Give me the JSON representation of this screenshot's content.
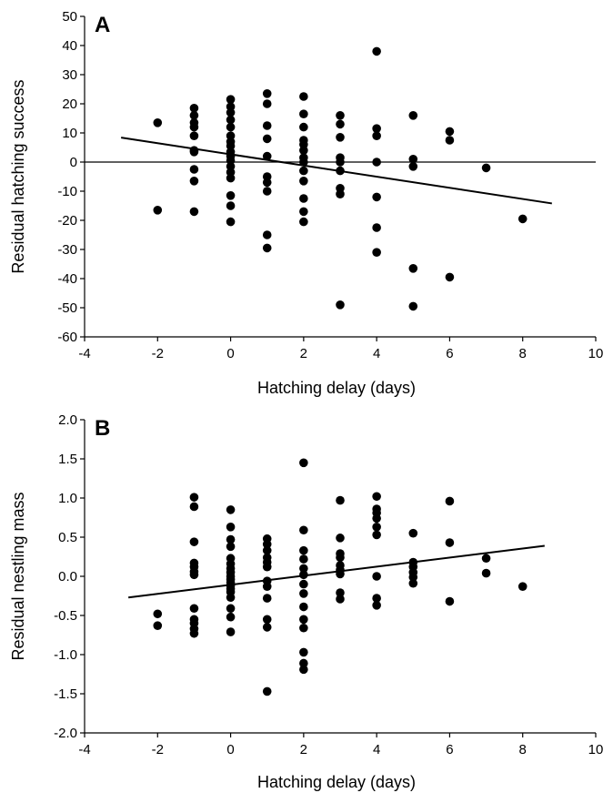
{
  "chart_data": [
    {
      "type": "scatter",
      "panel_label": "A",
      "xlabel": "Hatching delay (days)",
      "ylabel": "Residual hatching success",
      "xlim": [
        -4,
        10
      ],
      "ylim": [
        -60,
        50
      ],
      "xticks": [
        -4,
        -2,
        0,
        2,
        4,
        6,
        8,
        10
      ],
      "yticks": [
        -60,
        -50,
        -40,
        -30,
        -20,
        -10,
        0,
        10,
        20,
        30,
        40,
        50
      ],
      "xtick_labels": [
        "-4",
        "-2",
        "0",
        "2",
        "4",
        "6",
        "8",
        "10"
      ],
      "ytick_labels": [
        "-60",
        "-50",
        "-40",
        "-30",
        "-20",
        "-10",
        "0",
        "10",
        "20",
        "30",
        "40",
        "50"
      ],
      "grid": false,
      "legend": "none",
      "trendline": {
        "x": [
          -3,
          8.8
        ],
        "y": [
          8.4,
          -14.2
        ]
      },
      "points": [
        [
          -2,
          13.5
        ],
        [
          -2,
          -16.5
        ],
        [
          -1,
          18.5
        ],
        [
          -1,
          16
        ],
        [
          -1,
          13.5
        ],
        [
          -1,
          12
        ],
        [
          -1,
          9
        ],
        [
          -1,
          4
        ],
        [
          -1,
          3.5
        ],
        [
          -1,
          -2.5
        ],
        [
          -1,
          -6.5
        ],
        [
          -1,
          -17
        ],
        [
          0,
          21.5
        ],
        [
          0,
          19
        ],
        [
          0,
          17
        ],
        [
          0,
          14.5
        ],
        [
          0,
          12
        ],
        [
          0,
          9
        ],
        [
          0,
          7
        ],
        [
          0,
          5.5
        ],
        [
          0,
          3.5
        ],
        [
          0,
          2
        ],
        [
          0,
          0.5
        ],
        [
          0,
          -1.5
        ],
        [
          0,
          -3.5
        ],
        [
          0,
          -5.5
        ],
        [
          0,
          -11.5
        ],
        [
          0,
          -15
        ],
        [
          0,
          -20.5
        ],
        [
          1,
          23.5
        ],
        [
          1,
          20
        ],
        [
          1,
          12.5
        ],
        [
          1,
          8
        ],
        [
          1,
          2
        ],
        [
          1,
          -5
        ],
        [
          1,
          -7
        ],
        [
          1,
          -10
        ],
        [
          1,
          -25
        ],
        [
          1,
          -29.5
        ],
        [
          2,
          22.5
        ],
        [
          2,
          16.5
        ],
        [
          2,
          12
        ],
        [
          2,
          7.5
        ],
        [
          2,
          6
        ],
        [
          2,
          4
        ],
        [
          2,
          1.5
        ],
        [
          2,
          0
        ],
        [
          2,
          -3
        ],
        [
          2,
          -6.5
        ],
        [
          2,
          -12.5
        ],
        [
          2,
          -17
        ],
        [
          2,
          -20.5
        ],
        [
          3,
          16
        ],
        [
          3,
          13
        ],
        [
          3,
          8.5
        ],
        [
          3,
          1.5
        ],
        [
          3,
          0
        ],
        [
          3,
          -3
        ],
        [
          3,
          -9
        ],
        [
          3,
          -11
        ],
        [
          3,
          -49
        ],
        [
          4,
          38
        ],
        [
          4,
          11.5
        ],
        [
          4,
          9
        ],
        [
          4,
          0
        ],
        [
          4,
          -12
        ],
        [
          4,
          -22.5
        ],
        [
          4,
          -31
        ],
        [
          5,
          16
        ],
        [
          5,
          1
        ],
        [
          5,
          -1.5
        ],
        [
          5,
          -36.5
        ],
        [
          5,
          -49.5
        ],
        [
          6,
          10.5
        ],
        [
          6,
          7.5
        ],
        [
          6,
          -39.5
        ],
        [
          7,
          -2
        ],
        [
          8,
          -19.5
        ]
      ]
    },
    {
      "type": "scatter",
      "panel_label": "B",
      "xlabel": "Hatching delay (days)",
      "ylabel": "Residual nestling mass",
      "xlim": [
        -4,
        10
      ],
      "ylim": [
        -2.0,
        2.0
      ],
      "xticks": [
        -4,
        -2,
        0,
        2,
        4,
        6,
        8,
        10
      ],
      "yticks": [
        -2.0,
        -1.5,
        -1.0,
        -0.5,
        0.0,
        0.5,
        1.0,
        1.5,
        2.0
      ],
      "xtick_labels": [
        "-4",
        "-2",
        "0",
        "2",
        "4",
        "6",
        "8",
        "10"
      ],
      "ytick_labels": [
        "-2.0",
        "-1.5",
        "-1.0",
        "-0.5",
        "0.0",
        "0.5",
        "1.0",
        "1.5",
        "2.0"
      ],
      "grid": false,
      "legend": "none",
      "trendline": {
        "x": [
          -2.8,
          8.6
        ],
        "y": [
          -0.27,
          0.39
        ]
      },
      "points": [
        [
          -2,
          -0.48
        ],
        [
          -2,
          -0.63
        ],
        [
          -1,
          1.01
        ],
        [
          -1,
          0.89
        ],
        [
          -1,
          0.44
        ],
        [
          -1,
          0.17
        ],
        [
          -1,
          0.12
        ],
        [
          -1,
          0.06
        ],
        [
          -1,
          0.02
        ],
        [
          -1,
          -0.41
        ],
        [
          -1,
          -0.55
        ],
        [
          -1,
          -0.6
        ],
        [
          -1,
          -0.67
        ],
        [
          -1,
          -0.73
        ],
        [
          0,
          0.85
        ],
        [
          0,
          0.63
        ],
        [
          0,
          0.47
        ],
        [
          0,
          0.38
        ],
        [
          0,
          0.23
        ],
        [
          0,
          0.16
        ],
        [
          0,
          0.1
        ],
        [
          0,
          0.05
        ],
        [
          0,
          0.0
        ],
        [
          0,
          -0.04
        ],
        [
          0,
          -0.08
        ],
        [
          0,
          -0.12
        ],
        [
          0,
          -0.16
        ],
        [
          0,
          -0.2
        ],
        [
          0,
          -0.27
        ],
        [
          0,
          -0.41
        ],
        [
          0,
          -0.52
        ],
        [
          0,
          -0.71
        ],
        [
          1,
          0.48
        ],
        [
          1,
          0.41
        ],
        [
          1,
          0.33
        ],
        [
          1,
          0.24
        ],
        [
          1,
          0.18
        ],
        [
          1,
          0.12
        ],
        [
          1,
          -0.06
        ],
        [
          1,
          -0.13
        ],
        [
          1,
          -0.28
        ],
        [
          1,
          -0.55
        ],
        [
          1,
          -0.65
        ],
        [
          1,
          -1.47
        ],
        [
          2,
          1.45
        ],
        [
          2,
          0.59
        ],
        [
          2,
          0.33
        ],
        [
          2,
          0.22
        ],
        [
          2,
          0.1
        ],
        [
          2,
          0.02
        ],
        [
          2,
          -0.1
        ],
        [
          2,
          -0.22
        ],
        [
          2,
          -0.39
        ],
        [
          2,
          -0.55
        ],
        [
          2,
          -0.66
        ],
        [
          2,
          -0.97
        ],
        [
          2,
          -1.11
        ],
        [
          2,
          -1.19
        ],
        [
          3,
          0.97
        ],
        [
          3,
          0.49
        ],
        [
          3,
          0.29
        ],
        [
          3,
          0.24
        ],
        [
          3,
          0.14
        ],
        [
          3,
          0.08
        ],
        [
          3,
          0.03
        ],
        [
          3,
          -0.21
        ],
        [
          3,
          -0.29
        ],
        [
          4,
          1.02
        ],
        [
          4,
          0.86
        ],
        [
          4,
          0.81
        ],
        [
          4,
          0.74
        ],
        [
          4,
          0.63
        ],
        [
          4,
          0.53
        ],
        [
          4,
          0.0
        ],
        [
          4,
          -0.28
        ],
        [
          4,
          -0.37
        ],
        [
          5,
          0.55
        ],
        [
          5,
          0.18
        ],
        [
          5,
          0.12
        ],
        [
          5,
          0.05
        ],
        [
          5,
          -0.01
        ],
        [
          5,
          -0.09
        ],
        [
          6,
          0.96
        ],
        [
          6,
          0.43
        ],
        [
          6,
          -0.32
        ],
        [
          7,
          0.23
        ],
        [
          7,
          0.04
        ],
        [
          8,
          -0.13
        ]
      ]
    }
  ]
}
